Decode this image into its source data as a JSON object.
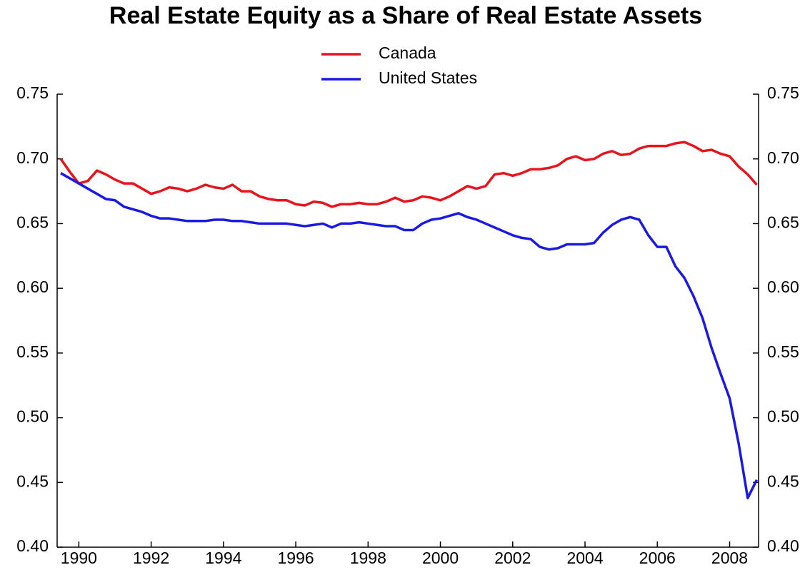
{
  "chart_data": {
    "type": "line",
    "title": "Real Estate Equity as a Share of Real Estate Assets",
    "x": [
      1989.5,
      1989.75,
      1990,
      1990.25,
      1990.5,
      1990.75,
      1991,
      1991.25,
      1991.5,
      1991.75,
      1992,
      1992.25,
      1992.5,
      1992.75,
      1993,
      1993.25,
      1993.5,
      1993.75,
      1994,
      1994.25,
      1994.5,
      1994.75,
      1995,
      1995.25,
      1995.5,
      1995.75,
      1996,
      1996.25,
      1996.5,
      1996.75,
      1997,
      1997.25,
      1997.5,
      1997.75,
      1998,
      1998.25,
      1998.5,
      1998.75,
      1999,
      1999.25,
      1999.5,
      1999.75,
      2000,
      2000.25,
      2000.5,
      2000.75,
      2001,
      2001.25,
      2001.5,
      2001.75,
      2002,
      2002.25,
      2002.5,
      2002.75,
      2003,
      2003.25,
      2003.5,
      2003.75,
      2004,
      2004.25,
      2004.5,
      2004.75,
      2005,
      2005.25,
      2005.5,
      2005.75,
      2006,
      2006.25,
      2006.5,
      2006.75,
      2007,
      2007.25,
      2007.5,
      2007.75,
      2008,
      2008.25,
      2008.5,
      2008.75
    ],
    "series": [
      {
        "name": "Canada",
        "color": "#e8141b",
        "values": [
          0.7,
          0.69,
          0.681,
          0.683,
          0.691,
          0.688,
          0.684,
          0.681,
          0.681,
          0.677,
          0.673,
          0.675,
          0.678,
          0.677,
          0.675,
          0.677,
          0.68,
          0.678,
          0.677,
          0.68,
          0.675,
          0.675,
          0.671,
          0.669,
          0.668,
          0.668,
          0.665,
          0.664,
          0.667,
          0.666,
          0.663,
          0.665,
          0.665,
          0.666,
          0.665,
          0.665,
          0.667,
          0.67,
          0.667,
          0.668,
          0.671,
          0.67,
          0.668,
          0.671,
          0.675,
          0.679,
          0.677,
          0.679,
          0.688,
          0.689,
          0.687,
          0.689,
          0.692,
          0.692,
          0.693,
          0.695,
          0.7,
          0.702,
          0.699,
          0.7,
          0.704,
          0.706,
          0.703,
          0.704,
          0.708,
          0.71,
          0.71,
          0.71,
          0.712,
          0.713,
          0.71,
          0.706,
          0.707,
          0.704,
          0.702,
          0.694,
          0.688,
          0.68
        ]
      },
      {
        "name": "United States",
        "color": "#1a1ae0",
        "values": [
          0.689,
          0.685,
          0.681,
          0.677,
          0.673,
          0.669,
          0.668,
          0.663,
          0.661,
          0.659,
          0.656,
          0.654,
          0.654,
          0.653,
          0.652,
          0.652,
          0.652,
          0.653,
          0.653,
          0.652,
          0.652,
          0.651,
          0.65,
          0.65,
          0.65,
          0.65,
          0.649,
          0.648,
          0.649,
          0.65,
          0.647,
          0.65,
          0.65,
          0.651,
          0.65,
          0.649,
          0.648,
          0.648,
          0.645,
          0.645,
          0.65,
          0.653,
          0.654,
          0.656,
          0.658,
          0.655,
          0.653,
          0.65,
          0.647,
          0.644,
          0.641,
          0.639,
          0.638,
          0.632,
          0.63,
          0.631,
          0.634,
          0.634,
          0.634,
          0.635,
          0.643,
          0.649,
          0.653,
          0.655,
          0.653,
          0.641,
          0.632,
          0.632,
          0.617,
          0.608,
          0.594,
          0.577,
          0.554,
          0.534,
          0.515,
          0.48,
          0.438,
          0.452
        ]
      }
    ],
    "xlim": [
      1989.4,
      2008.8
    ],
    "xticks": [
      1990,
      1992,
      1994,
      1996,
      1998,
      2000,
      2002,
      2004,
      2006,
      2008
    ],
    "ylim": [
      0.4,
      0.75
    ],
    "yticks": [
      {
        "value": 0.4,
        "label": "0.40"
      },
      {
        "value": 0.45,
        "label": "0.45"
      },
      {
        "value": 0.5,
        "label": "0.50"
      },
      {
        "value": 0.55,
        "label": "0.55"
      },
      {
        "value": 0.6,
        "label": "0.60"
      },
      {
        "value": 0.65,
        "label": "0.65"
      },
      {
        "value": 0.7,
        "label": "0.70"
      },
      {
        "value": 0.75,
        "label": "0.75"
      }
    ],
    "legend": "top"
  }
}
